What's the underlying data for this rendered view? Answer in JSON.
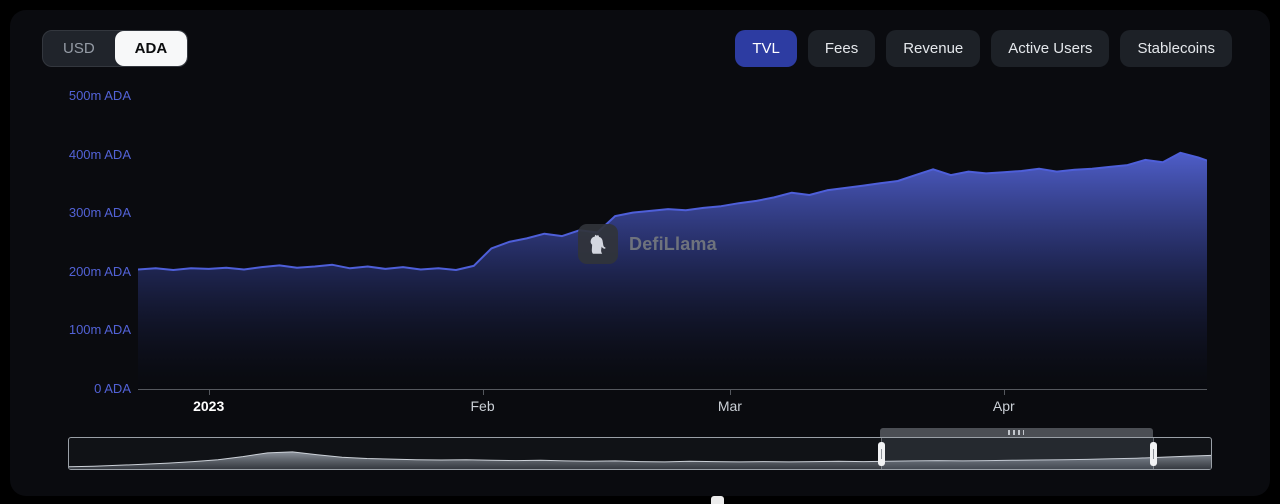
{
  "controls": {
    "currency_toggle": {
      "options": [
        "USD",
        "ADA"
      ],
      "selected": "ADA"
    },
    "tabs": [
      {
        "label": "TVL",
        "active": true
      },
      {
        "label": "Fees",
        "active": false
      },
      {
        "label": "Revenue",
        "active": false
      },
      {
        "label": "Active Users",
        "active": false
      },
      {
        "label": "Stablecoins",
        "active": false
      }
    ]
  },
  "watermark": {
    "text": "DefiLlama",
    "icon": "llama-icon"
  },
  "colors": {
    "accent_line": "#4e5fd9",
    "tab_active_bg": "#2d3ca2",
    "y_label_blue": "#5262d6",
    "panel_bg": "#0a0b0f"
  },
  "chart_data": {
    "type": "area",
    "series_name": "TVL",
    "unit": "m ADA",
    "ylim": [
      0,
      500
    ],
    "grid": false,
    "legend": false,
    "y_ticks": [
      {
        "value": 500,
        "label": "500m ADA"
      },
      {
        "value": 400,
        "label": "400m ADA"
      },
      {
        "value": 300,
        "label": "300m ADA"
      },
      {
        "value": 200,
        "label": "200m ADA"
      },
      {
        "value": 100,
        "label": "100m ADA"
      },
      {
        "value": 0,
        "label": "0 ADA"
      }
    ],
    "x_ticks": [
      {
        "date": "2023-01-01",
        "label": "2023",
        "bold": true
      },
      {
        "date": "2023-02-01",
        "label": "Feb",
        "bold": false
      },
      {
        "date": "2023-03-01",
        "label": "Mar",
        "bold": false
      },
      {
        "date": "2023-04-01",
        "label": "Apr",
        "bold": false
      }
    ],
    "dates": [
      "2022-12-24",
      "2022-12-26",
      "2022-12-28",
      "2022-12-30",
      "2023-01-01",
      "2023-01-03",
      "2023-01-05",
      "2023-01-07",
      "2023-01-09",
      "2023-01-11",
      "2023-01-13",
      "2023-01-15",
      "2023-01-17",
      "2023-01-19",
      "2023-01-21",
      "2023-01-23",
      "2023-01-25",
      "2023-01-27",
      "2023-01-29",
      "2023-01-31",
      "2023-02-02",
      "2023-02-04",
      "2023-02-06",
      "2023-02-08",
      "2023-02-10",
      "2023-02-12",
      "2023-02-14",
      "2023-02-16",
      "2023-02-18",
      "2023-02-20",
      "2023-02-22",
      "2023-02-24",
      "2023-02-26",
      "2023-02-28",
      "2023-03-02",
      "2023-03-04",
      "2023-03-06",
      "2023-03-08",
      "2023-03-10",
      "2023-03-12",
      "2023-03-14",
      "2023-03-16",
      "2023-03-18",
      "2023-03-20",
      "2023-03-22",
      "2023-03-24",
      "2023-03-26",
      "2023-03-28",
      "2023-03-30",
      "2023-04-01",
      "2023-04-03",
      "2023-04-05",
      "2023-04-07",
      "2023-04-09",
      "2023-04-11",
      "2023-04-13",
      "2023-04-15",
      "2023-04-17",
      "2023-04-19",
      "2023-04-21",
      "2023-04-23",
      "2023-04-24"
    ],
    "values": [
      204,
      206,
      203,
      206,
      205,
      207,
      204,
      208,
      211,
      207,
      209,
      212,
      206,
      209,
      205,
      208,
      204,
      206,
      203,
      210,
      240,
      251,
      257,
      265,
      261,
      271,
      267,
      295,
      301,
      304,
      307,
      305,
      309,
      312,
      317,
      321,
      327,
      335,
      331,
      339,
      343,
      347,
      351,
      355,
      365,
      375,
      365,
      371,
      368,
      370,
      372,
      376,
      371,
      374,
      376,
      379,
      382,
      391,
      387,
      403,
      395,
      390
    ],
    "navigator": {
      "relative_values": [
        0.07,
        0.09,
        0.12,
        0.15,
        0.19,
        0.24,
        0.3,
        0.4,
        0.52,
        0.55,
        0.46,
        0.38,
        0.34,
        0.32,
        0.3,
        0.29,
        0.3,
        0.28,
        0.27,
        0.28,
        0.26,
        0.25,
        0.26,
        0.24,
        0.23,
        0.25,
        0.24,
        0.23,
        0.24,
        0.23,
        0.24,
        0.25,
        0.24,
        0.25,
        0.26,
        0.27,
        0.26,
        0.27,
        0.28,
        0.29,
        0.3,
        0.31,
        0.33,
        0.35,
        0.38,
        0.41,
        0.44
      ],
      "selection": {
        "start": 0.71,
        "end": 0.948
      }
    }
  }
}
